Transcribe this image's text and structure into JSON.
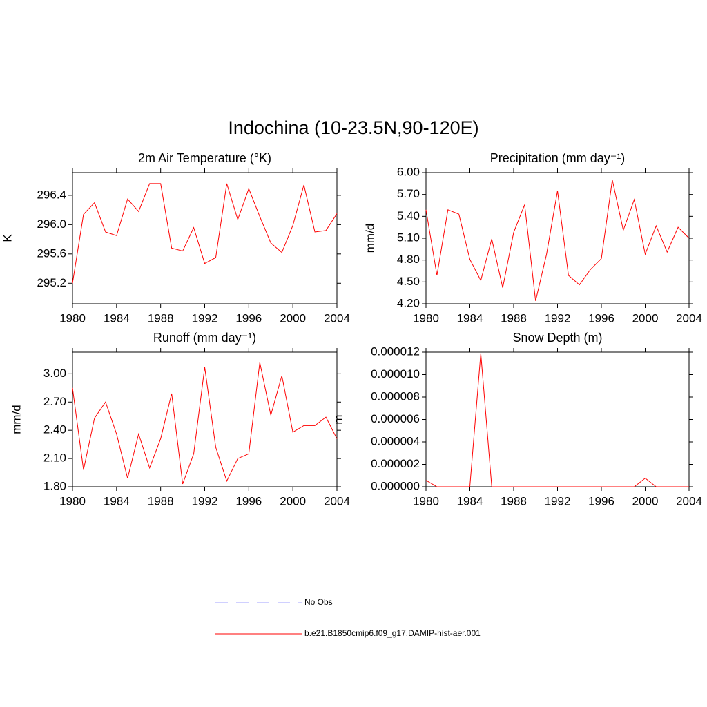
{
  "title": "Indochina (10-23.5N,90-120E)",
  "legend": [
    {
      "name": "No Obs",
      "color": "#a0a0ff",
      "dash": true
    },
    {
      "name": "b.e21.B1850cmip6.f09_g17.DAMIP-hist-aer.001",
      "color": "#ff0000",
      "dash": false
    }
  ],
  "chart_data": [
    {
      "type": "line",
      "title": "2m Air Temperature (°K)",
      "y_label": "K",
      "color": "#ff0000",
      "x": [
        1980,
        1981,
        1982,
        1983,
        1984,
        1985,
        1986,
        1987,
        1988,
        1989,
        1990,
        1991,
        1992,
        1993,
        1994,
        1995,
        1996,
        1997,
        1998,
        1999,
        2000,
        2001,
        2002,
        2003,
        2004
      ],
      "values": [
        295.2,
        296.14,
        296.3,
        295.9,
        295.85,
        296.35,
        296.18,
        296.56,
        296.56,
        295.68,
        295.64,
        295.96,
        295.47,
        295.55,
        296.56,
        296.07,
        296.49,
        296.11,
        295.75,
        295.62,
        295.99,
        296.54,
        295.9,
        295.92,
        296.15
      ],
      "xlim": [
        1980,
        2004
      ],
      "xticks": [
        1980,
        1984,
        1988,
        1992,
        1996,
        2000,
        2004
      ],
      "ylim": [
        294.92,
        296.71
      ],
      "yticks": [
        295.2,
        295.6,
        {
          "value": 296,
          "label": "296.0"
        },
        296.4
      ]
    },
    {
      "type": "line",
      "title": "Precipitation (mm day⁻¹)",
      "y_label": "mm/d",
      "color": "#ff0000",
      "x": [
        1980,
        1981,
        1982,
        1983,
        1984,
        1985,
        1986,
        1987,
        1988,
        1989,
        1990,
        1991,
        1992,
        1993,
        1994,
        1995,
        1996,
        1997,
        1998,
        1999,
        2000,
        2001,
        2002,
        2003,
        2004
      ],
      "values": [
        5.49,
        4.59,
        5.49,
        5.43,
        4.81,
        4.52,
        5.09,
        4.42,
        5.18,
        5.56,
        4.24,
        4.88,
        5.75,
        4.59,
        4.46,
        4.67,
        4.82,
        5.9,
        5.21,
        5.63,
        4.88,
        5.27,
        4.91,
        5.25,
        5.1
      ],
      "xlim": [
        1980,
        2004
      ],
      "xticks": [
        1980,
        1984,
        1988,
        1992,
        1996,
        2000,
        2004
      ],
      "ylim": [
        4.2,
        6.0
      ],
      "yticks": [
        {
          "value": 4.2,
          "label": "4.20"
        },
        {
          "value": 4.5,
          "label": "4.50"
        },
        {
          "value": 4.8,
          "label": "4.80"
        },
        {
          "value": 5.1,
          "label": "5.10"
        },
        {
          "value": 5.4,
          "label": "5.40"
        },
        {
          "value": 5.7,
          "label": "5.70"
        },
        {
          "value": 6.0,
          "label": "6.00"
        }
      ]
    },
    {
      "type": "line",
      "title": "Runoff (mm day⁻¹)",
      "y_label": "mm/d",
      "color": "#ff0000",
      "x": [
        1980,
        1981,
        1982,
        1983,
        1984,
        1985,
        1986,
        1987,
        1988,
        1989,
        1990,
        1991,
        1992,
        1993,
        1994,
        1995,
        1996,
        1997,
        1998,
        1999,
        2000,
        2001,
        2002,
        2003,
        2004
      ],
      "values": [
        2.85,
        1.98,
        2.53,
        2.7,
        2.36,
        1.89,
        2.36,
        2.0,
        2.31,
        2.79,
        1.83,
        2.15,
        3.07,
        2.22,
        1.86,
        2.1,
        2.15,
        3.12,
        2.56,
        2.98,
        2.38,
        2.45,
        2.45,
        2.54,
        2.31
      ],
      "xlim": [
        1980,
        2004
      ],
      "xticks": [
        1980,
        1984,
        1988,
        1992,
        1996,
        2000,
        2004
      ],
      "ylim": [
        1.8,
        3.23
      ],
      "yticks": [
        {
          "value": 1.8,
          "label": "1.80"
        },
        {
          "value": 2.1,
          "label": "2.10"
        },
        {
          "value": 2.4,
          "label": "2.40"
        },
        {
          "value": 2.7,
          "label": "2.70"
        },
        {
          "value": 3.0,
          "label": "3.00"
        }
      ]
    },
    {
      "type": "line",
      "title": "Snow Depth (m)",
      "y_label": "m",
      "color": "#ff0000",
      "x": [
        1980,
        1981,
        1982,
        1983,
        1984,
        1985,
        1986,
        1987,
        1988,
        1989,
        1990,
        1991,
        1992,
        1993,
        1994,
        1995,
        1996,
        1997,
        1998,
        1999,
        2000,
        2001,
        2002,
        2003,
        2004
      ],
      "values": [
        5.7e-07,
        0,
        0,
        0,
        0,
        1.19e-05,
        0,
        0,
        0,
        0,
        0,
        0,
        0,
        0,
        0,
        0,
        0,
        0,
        0,
        0,
        7.6e-07,
        0,
        0,
        0,
        0
      ],
      "xlim": [
        1980,
        2004
      ],
      "xticks": [
        1980,
        1984,
        1988,
        1992,
        1996,
        2000,
        2004
      ],
      "ylim": [
        0,
        1.2e-05
      ],
      "yticks": [
        {
          "value": 0,
          "label": "0.000000"
        },
        {
          "value": 2e-06,
          "label": "0.000002"
        },
        {
          "value": 4e-06,
          "label": "0.000004"
        },
        {
          "value": 6e-06,
          "label": "0.000006"
        },
        {
          "value": 8e-06,
          "label": "0.000008"
        },
        {
          "value": 1e-05,
          "label": "0.000010"
        },
        {
          "value": 1.2e-05,
          "label": "0.000012"
        }
      ]
    }
  ]
}
